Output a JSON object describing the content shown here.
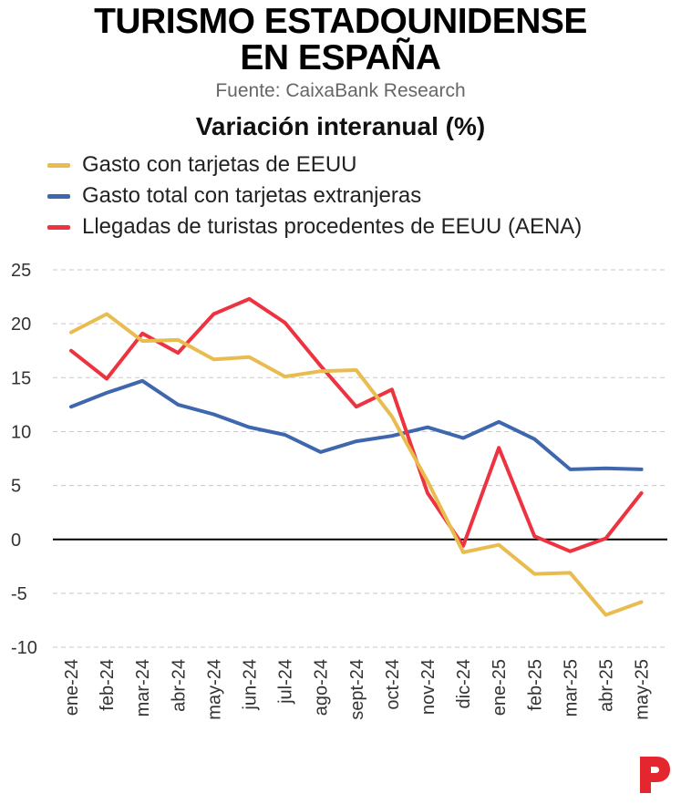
{
  "title_line1": "TURISMO ESTADOUNIDENSE",
  "title_line2": "EN ESPAÑA",
  "source": "Fuente: CaixaBank Research",
  "subtitle": "Variación interanual (%)",
  "colors": {
    "gasto_eeuu": "#E8BC4E",
    "gasto_total": "#3F67AE",
    "llegadas": "#EE3340",
    "zero_line": "#000000",
    "grid": "#c8c8c8",
    "logo": "#E4262E"
  },
  "logo_icon": "p-logo-icon",
  "chart_data": {
    "type": "line",
    "title": "Variación interanual (%)",
    "categories": [
      "ene-24",
      "feb-24",
      "mar-24",
      "abr-24",
      "may-24",
      "jun-24",
      "jul-24",
      "ago-24",
      "sept-24",
      "oct-24",
      "nov-24",
      "dic-24",
      "ene-25",
      "feb-25",
      "mar-25",
      "abr-25",
      "may-25"
    ],
    "ylim": [
      -10,
      25
    ],
    "yticks": [
      25,
      20,
      15,
      10,
      5,
      0,
      -5,
      -10
    ],
    "grid": true,
    "legend_position": "top-left",
    "series": [
      {
        "name": "Gasto con tarjetas de EEUU",
        "color": "#E8BC4E",
        "values": [
          19.2,
          20.9,
          18.4,
          18.5,
          16.7,
          16.9,
          15.1,
          15.6,
          15.7,
          11.4,
          5.4,
          -1.2,
          -0.5,
          -3.2,
          -3.1,
          -7.0,
          -5.8
        ]
      },
      {
        "name": "Gasto total con tarjetas extranjeras",
        "color": "#3F67AE",
        "values": [
          12.3,
          13.6,
          14.7,
          12.5,
          11.6,
          10.4,
          9.7,
          8.1,
          9.1,
          9.6,
          10.4,
          9.4,
          10.9,
          9.3,
          6.5,
          6.6,
          6.5
        ]
      },
      {
        "name": "Llegadas de turistas procedentes de EEUU (AENA)",
        "color": "#EE3340",
        "values": [
          17.5,
          14.9,
          19.1,
          17.3,
          20.9,
          22.3,
          20.1,
          16.1,
          12.3,
          13.9,
          4.3,
          -0.6,
          8.5,
          0.3,
          -1.1,
          0.1,
          4.3
        ]
      }
    ]
  }
}
